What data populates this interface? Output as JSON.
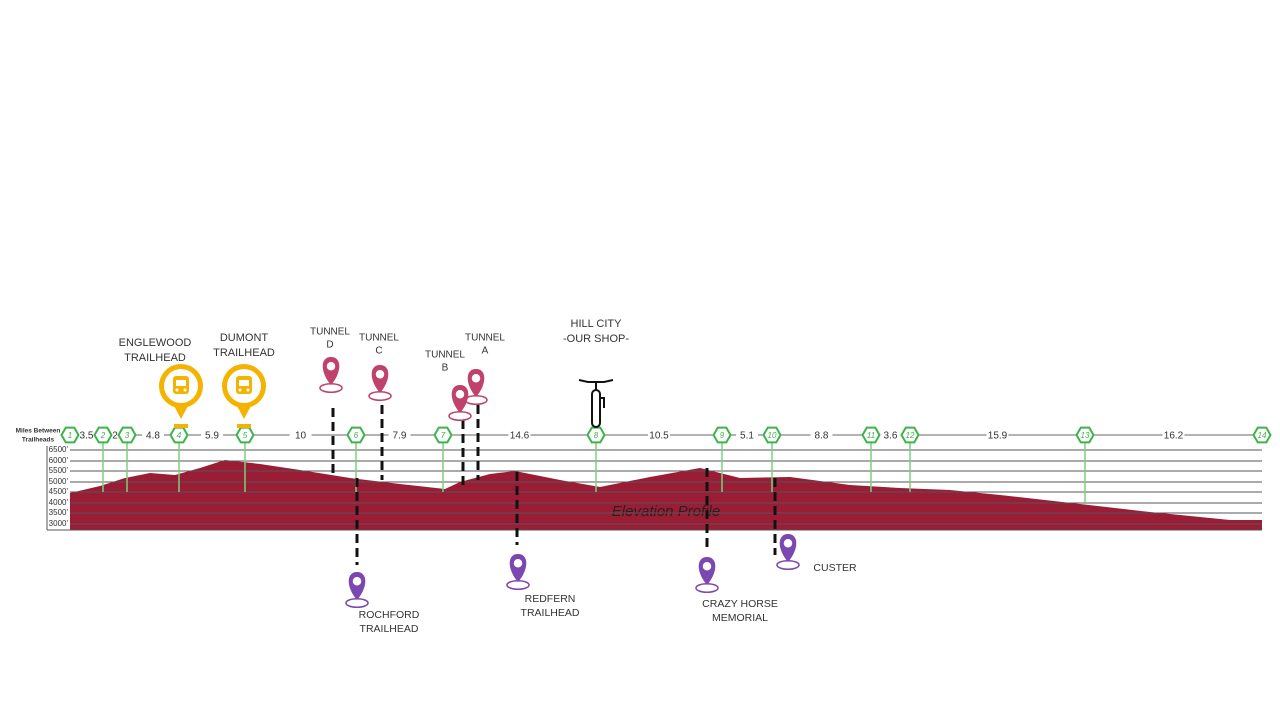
{
  "row_label": [
    "Miles Between",
    "Trailheads"
  ],
  "trailheads": [
    "1",
    "2",
    "3",
    "4",
    "5",
    "6",
    "7",
    "8",
    "9",
    "10",
    "11",
    "12",
    "13",
    "14"
  ],
  "segment_miles": [
    "3.5",
    "2",
    "4.8",
    "5.9",
    "10",
    "7.9",
    "14.6",
    "10.5",
    "5.1",
    "8.8",
    "3.6",
    "15.9",
    "16.2"
  ],
  "elevations": [
    "6500'",
    "6000'",
    "5500'",
    "5000'",
    "4500'",
    "4000'",
    "3500'",
    "3000'"
  ],
  "profile_label": "Elevation Profile",
  "bus_stops": [
    {
      "label": [
        "ENGLEWOOD",
        "TRAILHEAD"
      ]
    },
    {
      "label": [
        "DUMONT",
        "TRAILHEAD"
      ]
    }
  ],
  "tunnels": [
    {
      "label": [
        "TUNNEL",
        "D"
      ]
    },
    {
      "label": [
        "TUNNEL",
        "C"
      ]
    },
    {
      "label": [
        "TUNNEL",
        "B"
      ]
    },
    {
      "label": [
        "TUNNEL",
        "A"
      ]
    }
  ],
  "shop": {
    "label": [
      "HILL CITY",
      "-OUR SHOP-"
    ]
  },
  "landmarks": [
    {
      "label": [
        "ROCHFORD",
        "TRAILHEAD"
      ]
    },
    {
      "label": [
        "REDFERN",
        "TRAILHEAD"
      ]
    },
    {
      "label": [
        "CRAZY HORSE",
        "MEMORIAL"
      ]
    },
    {
      "label": [
        "CUSTER"
      ]
    }
  ]
}
